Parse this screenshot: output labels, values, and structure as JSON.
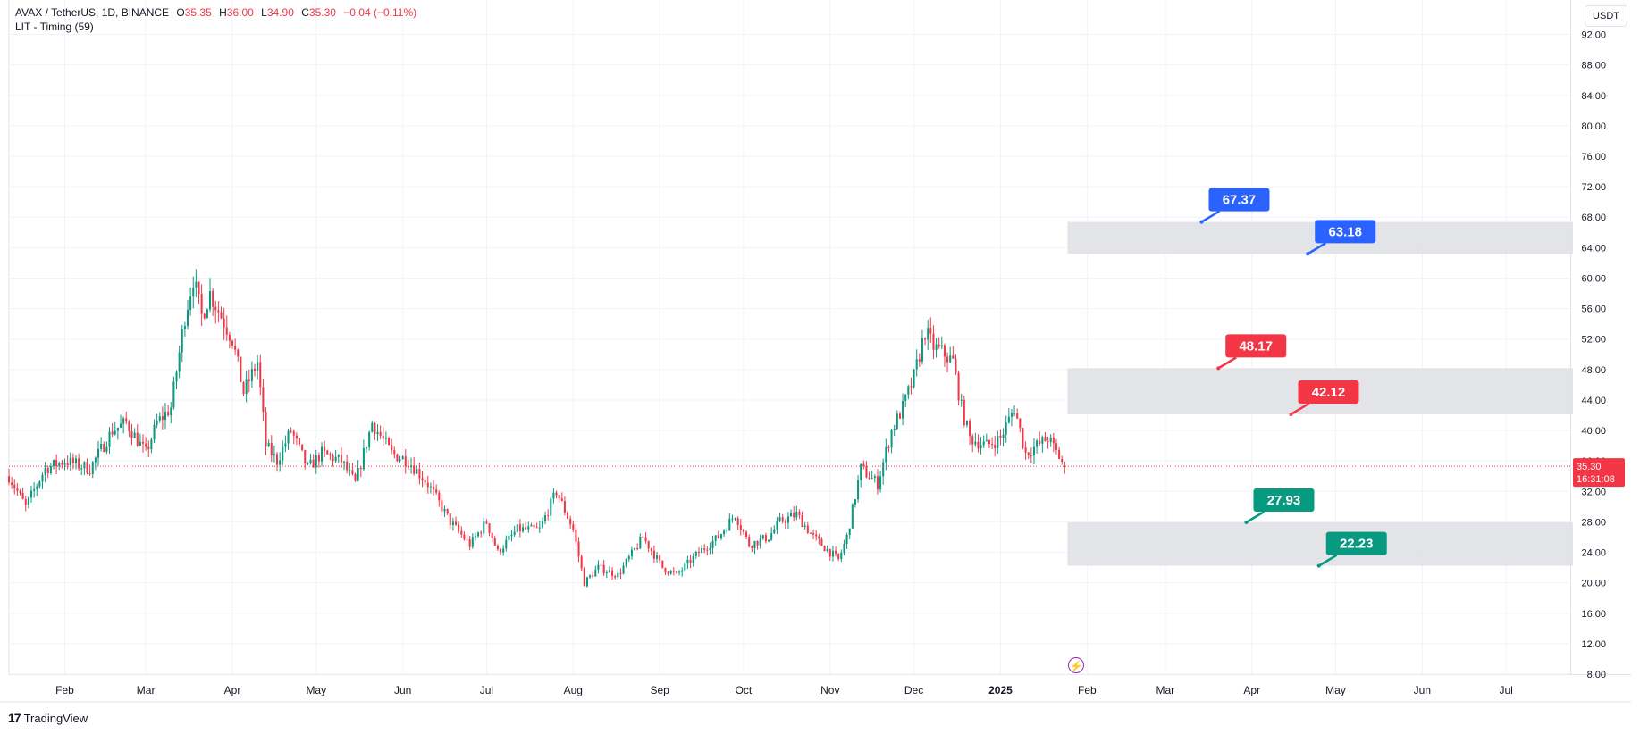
{
  "header": {
    "symbol": "AVAX / TetherUS, 1D, BINANCE",
    "open_label": "O",
    "open": "35.35",
    "high_label": "H",
    "high": "36.00",
    "low_label": "L",
    "low": "34.90",
    "close_label": "C",
    "close": "35.30",
    "change": "−0.04 (−0.11%)",
    "indicator": "LIT - Timing (59)"
  },
  "currency_button": "USDT",
  "brand": {
    "logo": "17",
    "name": "TradingView"
  },
  "price_badge": {
    "price": "35.30",
    "countdown": "16:31:08"
  },
  "colors": {
    "up": "#089981",
    "down": "#f23645",
    "blue": "#2962ff",
    "red": "#f23645",
    "green": "#089981",
    "zone": "#e0e1e4",
    "grid": "#f0f3fa"
  },
  "chart_data": {
    "type": "candlestick",
    "y_ticks": [
      "8.00",
      "12.00",
      "16.00",
      "20.00",
      "24.00",
      "28.00",
      "32.00",
      "36.00",
      "40.00",
      "44.00",
      "48.00",
      "52.00",
      "56.00",
      "60.00",
      "64.00",
      "68.00",
      "72.00",
      "76.00",
      "80.00",
      "84.00",
      "88.00",
      "92.00"
    ],
    "x_ticks": [
      {
        "label": "Feb",
        "date": "2024-02-01"
      },
      {
        "label": "Mar",
        "date": "2024-03-01"
      },
      {
        "label": "Apr",
        "date": "2024-04-01"
      },
      {
        "label": "May",
        "date": "2024-05-01"
      },
      {
        "label": "Jun",
        "date": "2024-06-01"
      },
      {
        "label": "Jul",
        "date": "2024-07-01"
      },
      {
        "label": "Aug",
        "date": "2024-08-01"
      },
      {
        "label": "Sep",
        "date": "2024-09-01"
      },
      {
        "label": "Oct",
        "date": "2024-10-01"
      },
      {
        "label": "Nov",
        "date": "2024-11-01"
      },
      {
        "label": "Dec",
        "date": "2024-12-01"
      },
      {
        "label": "2025",
        "date": "2025-01-01",
        "bold": true
      },
      {
        "label": "Feb",
        "date": "2025-02-01"
      },
      {
        "label": "Mar",
        "date": "2025-03-01"
      },
      {
        "label": "Apr",
        "date": "2025-04-01"
      },
      {
        "label": "May",
        "date": "2025-05-01"
      },
      {
        "label": "Jun",
        "date": "2025-06-01"
      },
      {
        "label": "Jul",
        "date": "2025-07-01"
      }
    ],
    "x_range": [
      "2024-01-12",
      "2025-07-24"
    ],
    "y_range": [
      8,
      93
    ],
    "price_path": [
      [
        "2024-01-12",
        34
      ],
      [
        "2024-01-18",
        30
      ],
      [
        "2024-01-25",
        35
      ],
      [
        "2024-02-01",
        36
      ],
      [
        "2024-02-10",
        35
      ],
      [
        "2024-02-18",
        40
      ],
      [
        "2024-02-23",
        41
      ],
      [
        "2024-03-01",
        37
      ],
      [
        "2024-03-05",
        41
      ],
      [
        "2024-03-10",
        43
      ],
      [
        "2024-03-15",
        55
      ],
      [
        "2024-03-18",
        60
      ],
      [
        "2024-03-21",
        55
      ],
      [
        "2024-03-24",
        58
      ],
      [
        "2024-03-28",
        55
      ],
      [
        "2024-04-01",
        52
      ],
      [
        "2024-04-05",
        45
      ],
      [
        "2024-04-10",
        49
      ],
      [
        "2024-04-13",
        38
      ],
      [
        "2024-04-17",
        36
      ],
      [
        "2024-04-22",
        40
      ],
      [
        "2024-04-28",
        35
      ],
      [
        "2024-05-03",
        37
      ],
      [
        "2024-05-10",
        36
      ],
      [
        "2024-05-15",
        33
      ],
      [
        "2024-05-21",
        41
      ],
      [
        "2024-05-28",
        37
      ],
      [
        "2024-06-03",
        36
      ],
      [
        "2024-06-10",
        33
      ],
      [
        "2024-06-18",
        28
      ],
      [
        "2024-06-25",
        25
      ],
      [
        "2024-07-01",
        28
      ],
      [
        "2024-07-05",
        24
      ],
      [
        "2024-07-12",
        27
      ],
      [
        "2024-07-20",
        27
      ],
      [
        "2024-07-26",
        32
      ],
      [
        "2024-08-01",
        27
      ],
      [
        "2024-08-05",
        20
      ],
      [
        "2024-08-10",
        22
      ],
      [
        "2024-08-17",
        21
      ],
      [
        "2024-08-26",
        26
      ],
      [
        "2024-09-02",
        22
      ],
      [
        "2024-09-07",
        21
      ],
      [
        "2024-09-15",
        24
      ],
      [
        "2024-09-22",
        26
      ],
      [
        "2024-09-28",
        29
      ],
      [
        "2024-10-03",
        25
      ],
      [
        "2024-10-10",
        26
      ],
      [
        "2024-10-14",
        28
      ],
      [
        "2024-10-20",
        29
      ],
      [
        "2024-10-26",
        26
      ],
      [
        "2024-11-01",
        24
      ],
      [
        "2024-11-04",
        23
      ],
      [
        "2024-11-07",
        26
      ],
      [
        "2024-11-12",
        35
      ],
      [
        "2024-11-18",
        33
      ],
      [
        "2024-11-23",
        40
      ],
      [
        "2024-11-27",
        43
      ],
      [
        "2024-12-01",
        47
      ],
      [
        "2024-12-05",
        53
      ],
      [
        "2024-12-08",
        51
      ],
      [
        "2024-12-12",
        50
      ],
      [
        "2024-12-15",
        49
      ],
      [
        "2024-12-18",
        43
      ],
      [
        "2024-12-21",
        39
      ],
      [
        "2024-12-27",
        38
      ],
      [
        "2025-01-01",
        39
      ],
      [
        "2025-01-06",
        43
      ],
      [
        "2025-01-10",
        37
      ],
      [
        "2025-01-14",
        38
      ],
      [
        "2025-01-18",
        39
      ],
      [
        "2025-01-24",
        35.3
      ]
    ],
    "zones": [
      {
        "top": 67.37,
        "bottom": 63.18,
        "start": "2025-01-25",
        "color": "blue",
        "labels": [
          {
            "text": "67.37",
            "date": "2025-03-14"
          },
          {
            "text": "63.18",
            "date": "2025-04-21"
          }
        ]
      },
      {
        "top": 48.17,
        "bottom": 42.12,
        "start": "2025-01-25",
        "color": "red",
        "labels": [
          {
            "text": "48.17",
            "date": "2025-03-20"
          },
          {
            "text": "42.12",
            "date": "2025-04-15"
          }
        ]
      },
      {
        "top": 27.93,
        "bottom": 22.23,
        "start": "2025-01-25",
        "color": "green",
        "labels": [
          {
            "text": "27.93",
            "date": "2025-03-30"
          },
          {
            "text": "22.23",
            "date": "2025-04-25"
          }
        ]
      }
    ],
    "last_price": 35.3
  }
}
